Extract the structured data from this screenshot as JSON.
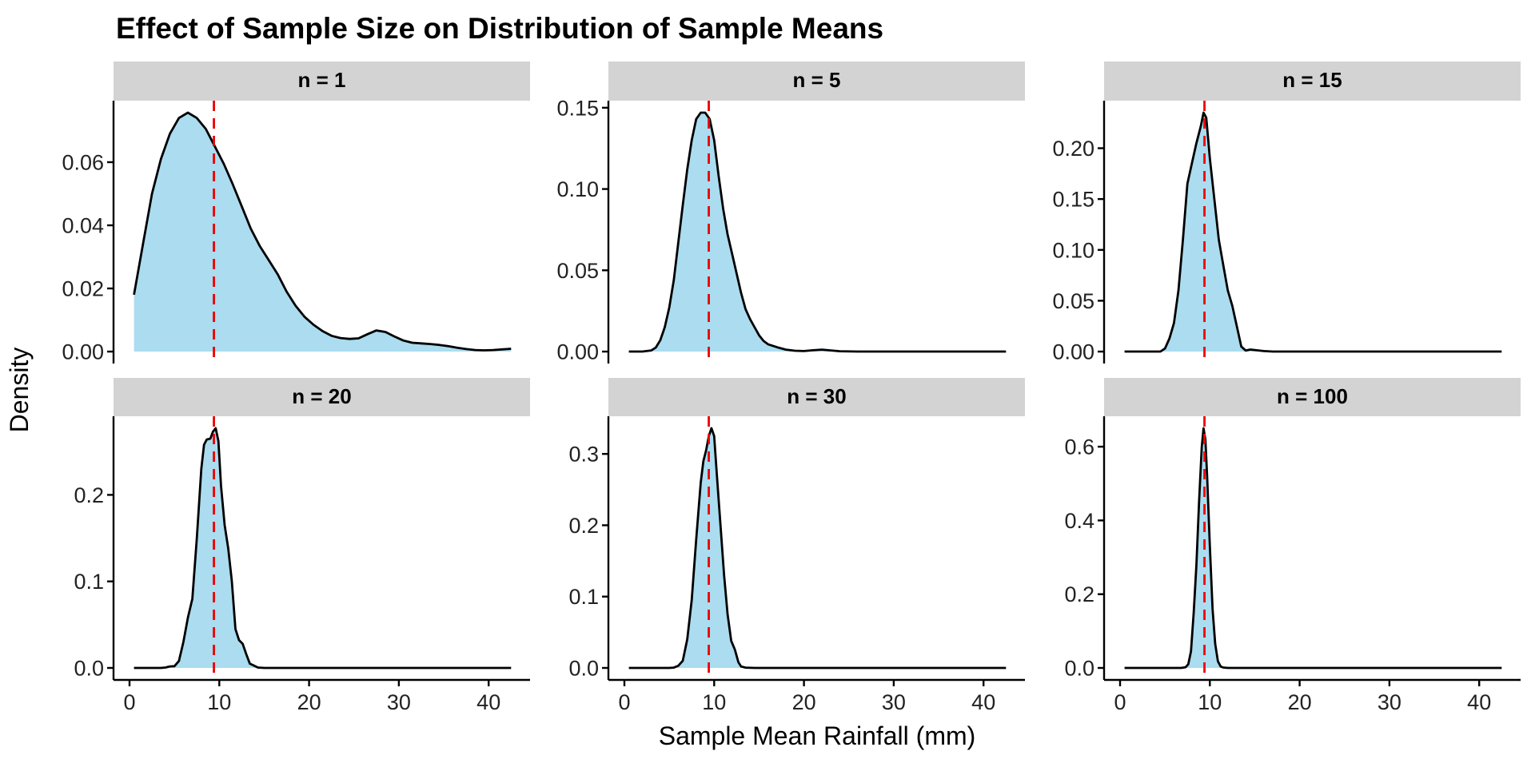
{
  "chart_data": {
    "type": "area",
    "title": "Effect of Sample Size on Distribution of Sample Means",
    "xlabel": "Sample Mean Rainfall (mm)",
    "ylabel": "Density",
    "grid": false,
    "legend": "none",
    "xlim": [
      0.5,
      42.5
    ],
    "x_ticks": [
      0,
      10,
      20,
      30,
      40
    ],
    "reference_line": {
      "type": "vertical-dashed",
      "x": 9.4,
      "color": "#ee0000"
    },
    "colors": {
      "fill": "#abdcef",
      "line": "#000000",
      "strip": "#d3d3d3"
    },
    "panels": [
      {
        "label": "n = 1",
        "n": 1,
        "y_ticks": [
          0.0,
          0.02,
          0.04,
          0.06
        ],
        "y_tick_labels": [
          "0.00",
          "0.02",
          "0.04",
          "0.06"
        ],
        "ymax": 0.0757,
        "x": [
          0.5,
          1.5,
          2.5,
          3.5,
          4.5,
          5.5,
          6.5,
          7.5,
          8.5,
          9.5,
          10.5,
          11.5,
          12.5,
          13.5,
          14.5,
          15.5,
          16.5,
          17.5,
          18.5,
          19.5,
          20.5,
          21.5,
          22.5,
          23.5,
          24.5,
          25.5,
          26.5,
          27.5,
          28.5,
          29.5,
          30.5,
          31.5,
          32.5,
          33.5,
          34.5,
          35.5,
          36.5,
          37.5,
          38.5,
          39.5,
          40.5,
          41.5,
          42.5
        ],
        "density": [
          0.018,
          0.034,
          0.05,
          0.061,
          0.069,
          0.074,
          0.0757,
          0.074,
          0.0705,
          0.065,
          0.0595,
          0.053,
          0.046,
          0.039,
          0.0335,
          0.029,
          0.0245,
          0.019,
          0.0145,
          0.011,
          0.0085,
          0.0065,
          0.005,
          0.0043,
          0.004,
          0.0042,
          0.0055,
          0.0067,
          0.0062,
          0.0048,
          0.0035,
          0.0028,
          0.0026,
          0.0024,
          0.0021,
          0.0017,
          0.0012,
          0.0008,
          0.0005,
          0.0004,
          0.0005,
          0.0007,
          0.0009
        ]
      },
      {
        "label": "n = 5",
        "n": 5,
        "y_ticks": [
          0.0,
          0.05,
          0.1,
          0.15
        ],
        "y_tick_labels": [
          "0.00",
          "0.05",
          "0.10",
          "0.15"
        ],
        "ymax": 0.147,
        "x": [
          0.5,
          2,
          3,
          3.5,
          4,
          4.5,
          5,
          5.5,
          6,
          6.5,
          7,
          7.5,
          8,
          8.5,
          9,
          9.5,
          10,
          10.5,
          11,
          11.5,
          12,
          12.5,
          13,
          13.5,
          14,
          14.5,
          15,
          15.5,
          16,
          17,
          18,
          19,
          20,
          21,
          22,
          23,
          24,
          26,
          30,
          35,
          42.5
        ],
        "density": [
          0.0,
          0.0,
          0.0007,
          0.0025,
          0.007,
          0.015,
          0.027,
          0.044,
          0.067,
          0.09,
          0.112,
          0.13,
          0.143,
          0.147,
          0.147,
          0.143,
          0.13,
          0.108,
          0.088,
          0.072,
          0.06,
          0.048,
          0.036,
          0.026,
          0.02,
          0.015,
          0.01,
          0.0065,
          0.0045,
          0.0027,
          0.0012,
          0.0005,
          0.0003,
          0.0008,
          0.0012,
          0.0007,
          0.0002,
          0.0,
          0.0,
          0.0,
          0.0
        ]
      },
      {
        "label": "n = 15",
        "n": 15,
        "y_ticks": [
          0.0,
          0.05,
          0.1,
          0.15,
          0.2
        ],
        "y_tick_labels": [
          "0.00",
          "0.05",
          "0.10",
          "0.15",
          "0.20"
        ],
        "ymax": 0.235,
        "x": [
          0.5,
          4.5,
          5.0,
          5.5,
          6.0,
          6.5,
          7.0,
          7.5,
          8.0,
          8.5,
          9.0,
          9.3,
          9.6,
          10.0,
          10.5,
          11.0,
          11.5,
          12.0,
          12.5,
          13.0,
          13.5,
          14.0,
          14.5,
          15.0,
          16.0,
          17.0,
          42.5
        ],
        "density": [
          0.0,
          0.0,
          0.003,
          0.013,
          0.028,
          0.06,
          0.11,
          0.165,
          0.185,
          0.205,
          0.222,
          0.235,
          0.23,
          0.19,
          0.15,
          0.11,
          0.085,
          0.06,
          0.045,
          0.025,
          0.005,
          0.001,
          0.002,
          0.0015,
          0.0005,
          0.0,
          0.0
        ]
      },
      {
        "label": "n = 20",
        "n": 20,
        "y_ticks": [
          0.0,
          0.1,
          0.2
        ],
        "y_tick_labels": [
          "0.0",
          "0.1",
          "0.2"
        ],
        "ymax": 0.277,
        "x": [
          0.5,
          3.5,
          4.0,
          4.5,
          5.0,
          5.5,
          6.0,
          6.5,
          7.0,
          7.5,
          8.0,
          8.3,
          8.6,
          9.0,
          9.3,
          9.6,
          9.9,
          10.2,
          10.6,
          11.0,
          11.4,
          11.8,
          12.2,
          12.6,
          13.0,
          13.4,
          13.8,
          14.3,
          15.0,
          16.0,
          42.5
        ],
        "density": [
          0.0,
          0.0,
          0.0005,
          0.0018,
          0.002,
          0.008,
          0.03,
          0.058,
          0.08,
          0.15,
          0.23,
          0.258,
          0.264,
          0.265,
          0.273,
          0.277,
          0.262,
          0.21,
          0.165,
          0.138,
          0.1,
          0.045,
          0.032,
          0.028,
          0.016,
          0.005,
          0.003,
          0.0005,
          0.0,
          0.0,
          0.0
        ]
      },
      {
        "label": "n = 30",
        "n": 30,
        "y_ticks": [
          0.0,
          0.1,
          0.2,
          0.3
        ],
        "y_tick_labels": [
          "0.0",
          "0.1",
          "0.2",
          "0.3"
        ],
        "ymax": 0.336,
        "x": [
          0.5,
          5.0,
          5.5,
          6.0,
          6.5,
          7.0,
          7.5,
          8.0,
          8.5,
          8.8,
          9.1,
          9.4,
          9.7,
          10.0,
          10.3,
          10.7,
          11.1,
          11.5,
          11.9,
          12.3,
          12.7,
          13.0,
          13.5,
          14.5,
          42.5
        ],
        "density": [
          0.0,
          0.0,
          0.0005,
          0.003,
          0.01,
          0.04,
          0.095,
          0.18,
          0.26,
          0.29,
          0.305,
          0.325,
          0.336,
          0.325,
          0.27,
          0.2,
          0.13,
          0.075,
          0.038,
          0.026,
          0.008,
          0.002,
          0.0004,
          0.0,
          0.0
        ]
      },
      {
        "label": "n = 100",
        "n": 100,
        "y_ticks": [
          0.0,
          0.2,
          0.4,
          0.6
        ],
        "y_tick_labels": [
          "0.0",
          "0.2",
          "0.4",
          "0.6"
        ],
        "ymax": 0.65,
        "x": [
          0.5,
          6.8,
          7.3,
          7.6,
          7.9,
          8.2,
          8.5,
          8.8,
          9.1,
          9.3,
          9.5,
          9.7,
          10.0,
          10.3,
          10.6,
          10.9,
          11.2,
          11.5,
          12.0,
          42.5
        ],
        "density": [
          0.0,
          0.0,
          0.002,
          0.01,
          0.045,
          0.15,
          0.28,
          0.45,
          0.6,
          0.65,
          0.62,
          0.52,
          0.33,
          0.16,
          0.065,
          0.018,
          0.004,
          0.001,
          0.0,
          0.0
        ]
      }
    ]
  }
}
